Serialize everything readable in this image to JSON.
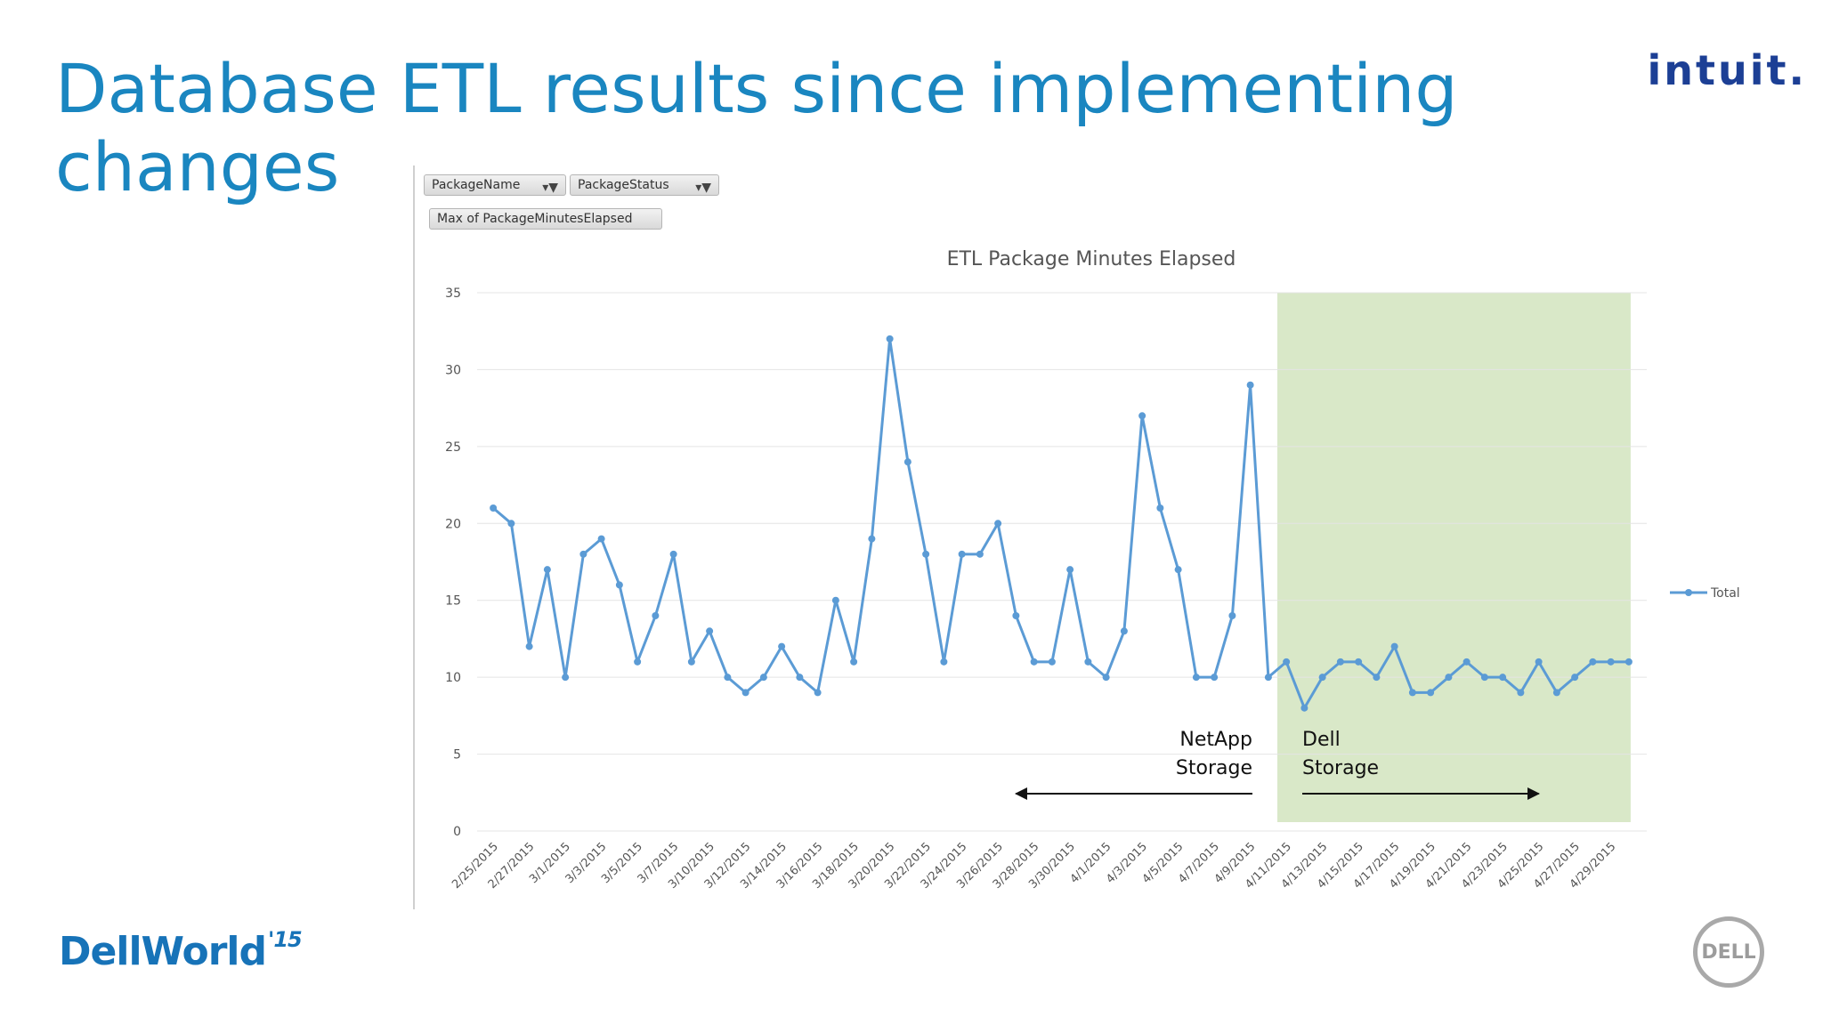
{
  "slide": {
    "title": "Database ETL results since implementing changes"
  },
  "logos": {
    "intuit": "intuit.",
    "dellworld": "DellWorld",
    "dellworld_year": "'15",
    "dell": "DELL"
  },
  "pivot_fields": {
    "package_name": "PackageName",
    "package_status": "PackageStatus",
    "value_field": "Max of PackageMinutesElapsed"
  },
  "colors": {
    "title": "#1a86c0",
    "series": "#5b9bd5",
    "highlight": "#d9e8c8"
  },
  "chart_data": {
    "type": "line",
    "title": "ETL Package Minutes Elapsed",
    "xlabel": "",
    "ylabel": "",
    "ylim": [
      0,
      35
    ],
    "yticks": [
      0,
      5,
      10,
      15,
      20,
      25,
      30,
      35
    ],
    "grid": true,
    "legend_position": "right",
    "x": [
      "2/25/2015",
      "2/26/2015",
      "2/27/2015",
      "2/28/2015",
      "3/1/2015",
      "3/2/2015",
      "3/3/2015",
      "3/4/2015",
      "3/5/2015",
      "3/6/2015",
      "3/7/2015",
      "3/8/2015",
      "3/10/2015",
      "3/11/2015",
      "3/12/2015",
      "3/13/2015",
      "3/14/2015",
      "3/15/2015",
      "3/16/2015",
      "3/17/2015",
      "3/18/2015",
      "3/19/2015",
      "3/20/2015",
      "3/21/2015",
      "3/22/2015",
      "3/23/2015",
      "3/24/2015",
      "3/25/2015",
      "3/26/2015",
      "3/27/2015",
      "3/28/2015",
      "3/29/2015",
      "3/30/2015",
      "3/31/2015",
      "4/1/2015",
      "4/2/2015",
      "4/3/2015",
      "4/4/2015",
      "4/5/2015",
      "4/6/2015",
      "4/7/2015",
      "4/8/2015",
      "4/9/2015",
      "4/10/2015",
      "4/11/2015",
      "4/12/2015",
      "4/13/2015",
      "4/14/2015",
      "4/15/2015",
      "4/16/2015",
      "4/17/2015",
      "4/18/2015",
      "4/19/2015",
      "4/20/2015",
      "4/21/2015",
      "4/22/2015",
      "4/23/2015",
      "4/24/2015",
      "4/25/2015",
      "4/26/2015",
      "4/27/2015",
      "4/28/2015",
      "4/29/2015",
      "4/30/2015"
    ],
    "x_tick_labels": [
      "2/25/2015",
      "2/27/2015",
      "3/1/2015",
      "3/3/2015",
      "3/5/2015",
      "3/7/2015",
      "3/10/2015",
      "3/12/2015",
      "3/14/2015",
      "3/16/2015",
      "3/18/2015",
      "3/20/2015",
      "3/22/2015",
      "3/24/2015",
      "3/26/2015",
      "3/28/2015",
      "3/30/2015",
      "4/1/2015",
      "4/3/2015",
      "4/5/2015",
      "4/7/2015",
      "4/9/2015",
      "4/11/2015",
      "4/13/2015",
      "4/15/2015",
      "4/17/2015",
      "4/19/2015",
      "4/21/2015",
      "4/23/2015",
      "4/25/2015",
      "4/27/2015",
      "4/29/2015"
    ],
    "series": [
      {
        "name": "Total",
        "values": [
          21,
          20,
          12,
          17,
          10,
          18,
          19,
          16,
          11,
          14,
          18,
          11,
          13,
          10,
          9,
          10,
          12,
          10,
          9,
          15,
          11,
          19,
          32,
          24,
          18,
          11,
          18,
          18,
          20,
          14,
          11,
          11,
          17,
          11,
          10,
          13,
          27,
          21,
          17,
          10,
          10,
          14,
          29,
          10,
          11,
          8,
          10,
          11,
          11,
          10,
          12,
          9,
          9,
          10,
          11,
          10,
          10,
          9,
          11,
          9,
          10,
          11,
          11,
          11
        ]
      }
    ],
    "highlight_region": {
      "from": "4/11/2015",
      "to": "4/30/2015"
    },
    "annotations": [
      {
        "line1": "NetApp",
        "line2": "Storage",
        "arrow": "left"
      },
      {
        "line1": "Dell",
        "line2": "Storage",
        "arrow": "right"
      }
    ]
  }
}
